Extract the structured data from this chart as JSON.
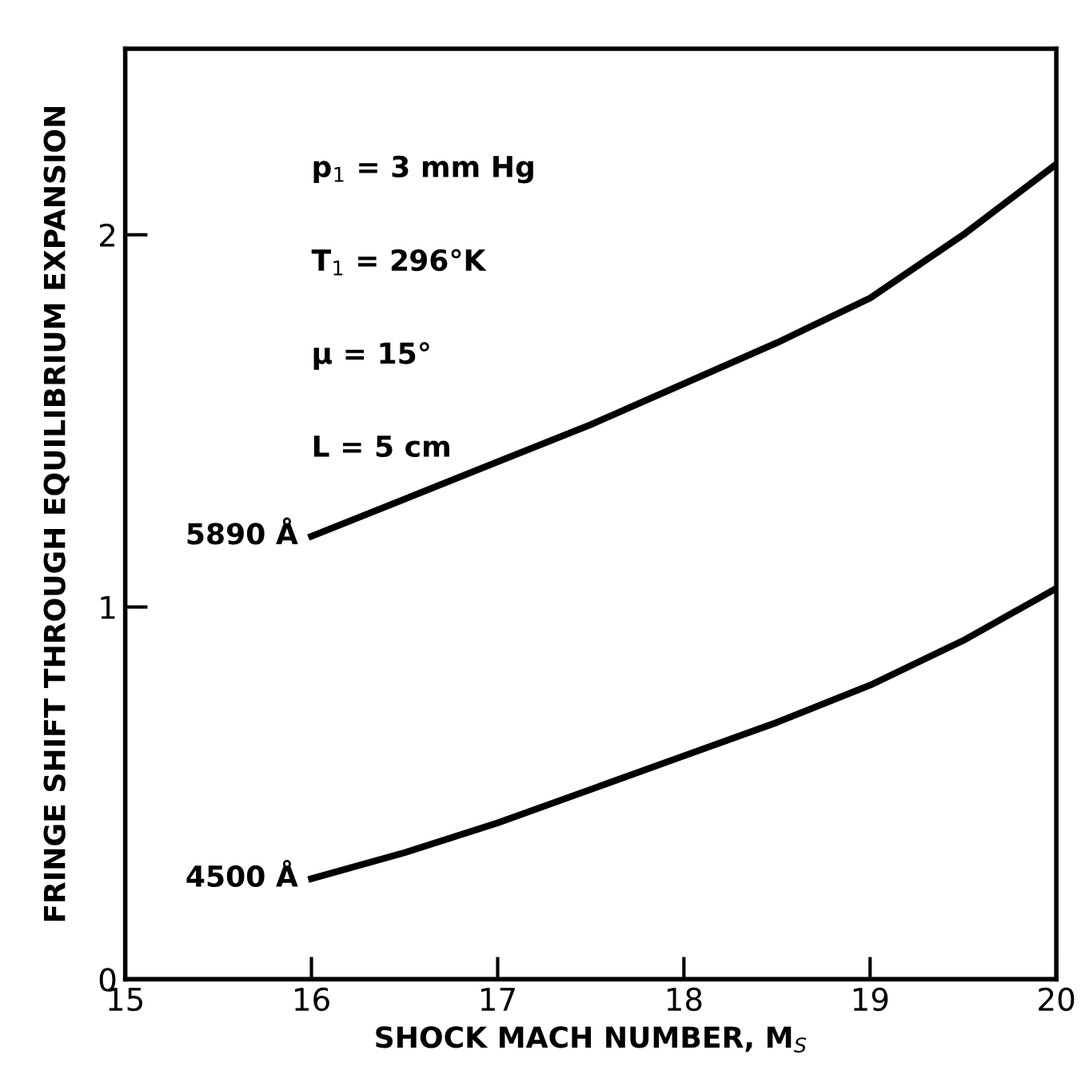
{
  "chart_data": {
    "type": "line",
    "xlabel": "SHOCK MACH NUMBER, M$_{S}$",
    "ylabel": "FRINGE SHIFT THROUGH EQUILIBRIUM EXPANSION",
    "x": [
      16,
      16.5,
      17,
      17.5,
      18,
      18.5,
      19,
      19.5,
      20
    ],
    "series": [
      {
        "name": "5890 Å",
        "color": "#000000",
        "values": [
          1.19,
          1.29,
          1.39,
          1.49,
          1.6,
          1.71,
          1.83,
          2.0,
          2.19
        ]
      },
      {
        "name": "4500 Å",
        "color": "#000000",
        "values": [
          0.27,
          0.34,
          0.42,
          0.51,
          0.6,
          0.69,
          0.79,
          0.91,
          1.05
        ]
      }
    ],
    "xlim": [
      15,
      20
    ],
    "xticks": [
      15,
      16,
      17,
      18,
      19,
      20
    ],
    "ylim": [
      0,
      2.5
    ],
    "yticks": [
      0,
      1,
      2
    ],
    "annotations": [
      "p$_{1}$ = 3 mm Hg",
      "T$_{1}$ = 296°K",
      "μ = 15°",
      "L = 5 cm"
    ],
    "grid": false,
    "legend": false,
    "marker": "none",
    "line_style": "solid"
  }
}
